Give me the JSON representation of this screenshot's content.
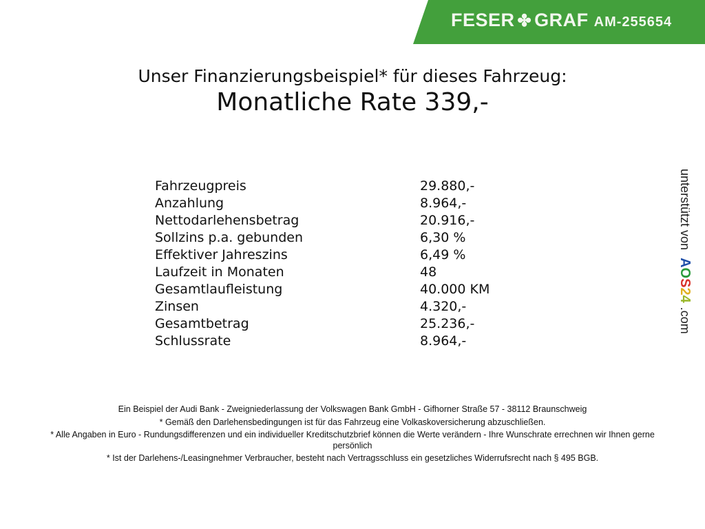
{
  "header": {
    "brand_left": "FESER",
    "brand_right": "GRAF",
    "ad_id": "AM-255654",
    "brand_color": "#43a03c",
    "icon": "clover-icon"
  },
  "title": "Unser Finanzierungsbeispiel* für dieses Fahrzeug:",
  "rate": "Monatliche Rate 339,-",
  "rows": [
    {
      "label": "Fahrzeugpreis",
      "value": "29.880,-"
    },
    {
      "label": "Anzahlung",
      "value": "8.964,-"
    },
    {
      "label": "Nettodarlehensbetrag",
      "value": "20.916,-"
    },
    {
      "label": "Sollzins p.a. gebunden",
      "value": "6,30 %"
    },
    {
      "label": "Effektiver Jahreszins",
      "value": "6,49 %"
    },
    {
      "label": "Laufzeit in Monaten",
      "value": "48"
    },
    {
      "label": "Gesamtlaufleistung",
      "value": "40.000 KM"
    },
    {
      "label": "Zinsen",
      "value": "4.320,-"
    },
    {
      "label": "Gesamtbetrag",
      "value": "25.236,-"
    },
    {
      "label": "Schlussrate",
      "value": "8.964,-"
    }
  ],
  "side": {
    "prefix": "unterstützt von",
    "logo_a": "A",
    "logo_o": "O",
    "logo_s": "S",
    "logo_2": "2",
    "logo_4": "4",
    "suffix": ".com"
  },
  "footer": [
    "Ein Beispiel der Audi Bank - Zweigniederlassung der Volkswagen Bank GmbH - Gifhorner Straße 57 - 38112 Braunschweig",
    "* Gemäß den Darlehensbedingungen ist für das Fahrzeug eine Volkaskoversicherung abzuschließen.",
    "* Alle Angaben in Euro - Rundungsdifferenzen und ein individueller Kreditschutzbrief können die Werte verändern - Ihre Wunschrate errechnen wir Ihnen gerne persönlich",
    "* Ist der Darlehens-/Leasingnehmer Verbraucher, besteht nach Vertragsschluss ein gesetzliches Widerrufsrecht nach § 495 BGB."
  ]
}
